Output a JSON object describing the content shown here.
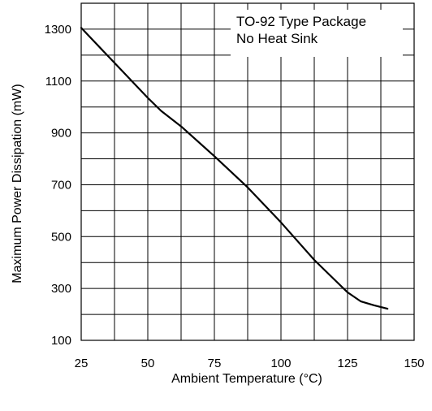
{
  "chart_data": {
    "type": "line",
    "xlabel": "Ambient Temperature (°C)",
    "ylabel": "Maximum Power Dissipation (mW)",
    "xlim": [
      25,
      150
    ],
    "ylim": [
      100,
      1400
    ],
    "x_ticks": [
      25,
      50,
      75,
      100,
      125,
      150
    ],
    "y_ticks": [
      100,
      300,
      500,
      700,
      900,
      1100,
      1300
    ],
    "x_grid_step": 12.5,
    "y_grid_step": 100,
    "grid": true,
    "annotation": [
      "TO-92 Type Package",
      "No Heat Sink"
    ],
    "annotation_position": "top-right",
    "series": [
      {
        "x": [
          25,
          37.5,
          50,
          55,
          62.5,
          75,
          87.5,
          100,
          112.5,
          120,
          125,
          130,
          135,
          140
        ],
        "values": [
          1305,
          1170,
          1035,
          985,
          925,
          810,
          690,
          555,
          410,
          335,
          285,
          250,
          235,
          222
        ]
      }
    ]
  }
}
